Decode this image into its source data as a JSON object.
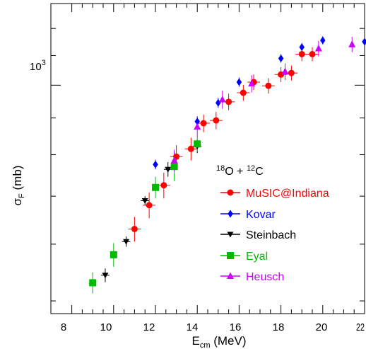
{
  "chart_data": {
    "type": "scatter",
    "title": "",
    "xlabel": {
      "main": "E",
      "sub": "cm",
      "unit": " (MeV)"
    },
    "ylabel": {
      "main": "σ",
      "sub": "F",
      "unit": " (mb)"
    },
    "xlim": [
      7.0,
      22.0
    ],
    "ylim_log": [
      480,
      1300
    ],
    "y_log_scale": true,
    "x_tick_labels": [
      "8",
      "10",
      "12",
      "14",
      "16",
      "18",
      "20",
      "22"
    ],
    "y_tick_labels": [
      "10",
      "3"
    ],
    "grid": false,
    "legend_title": {
      "a1": "18",
      "e1": "O + ",
      "a2": "12",
      "e2": "C"
    },
    "legend_placement": "center-right",
    "series": [
      {
        "name": "MuSIC@Indiana",
        "color": "#ff0000",
        "marker": "circle",
        "points": [
          {
            "x": 11.0,
            "y": 630,
            "xerr": 0.3,
            "yerr": 25
          },
          {
            "x": 11.7,
            "y": 680,
            "xerr": 0.3,
            "yerr": 28
          },
          {
            "x": 12.4,
            "y": 725,
            "xerr": 0.3,
            "yerr": 30
          },
          {
            "x": 13.0,
            "y": 795,
            "xerr": 0.3,
            "yerr": 30
          },
          {
            "x": 13.7,
            "y": 815,
            "xerr": 0.3,
            "yerr": 30
          },
          {
            "x": 14.3,
            "y": 885,
            "xerr": 0.3,
            "yerr": 25
          },
          {
            "x": 14.9,
            "y": 893,
            "xerr": 0.3,
            "yerr": 25
          },
          {
            "x": 15.5,
            "y": 948,
            "xerr": 0.3,
            "yerr": 25
          },
          {
            "x": 16.2,
            "y": 976,
            "xerr": 0.3,
            "yerr": 25
          },
          {
            "x": 16.7,
            "y": 1010,
            "xerr": 0.3,
            "yerr": 25
          },
          {
            "x": 17.4,
            "y": 998,
            "xerr": 0.3,
            "yerr": 25
          },
          {
            "x": 18.0,
            "y": 1035,
            "xerr": 0.3,
            "yerr": 25
          },
          {
            "x": 18.5,
            "y": 1040,
            "xerr": 0.3,
            "yerr": 25
          },
          {
            "x": 19.0,
            "y": 1105,
            "xerr": 0.3,
            "yerr": 25
          },
          {
            "x": 19.5,
            "y": 1105,
            "xerr": 0.3,
            "yerr": 25
          }
        ]
      },
      {
        "name": "Kovar",
        "color": "#0000ff",
        "marker": "diamond",
        "points": [
          {
            "x": 12.0,
            "y": 775,
            "xerr": 0,
            "yerr": 12
          },
          {
            "x": 14.0,
            "y": 890,
            "xerr": 0,
            "yerr": 15
          },
          {
            "x": 15.0,
            "y": 945,
            "xerr": 0,
            "yerr": 15
          },
          {
            "x": 16.0,
            "y": 1010,
            "xerr": 0,
            "yerr": 15
          },
          {
            "x": 18.0,
            "y": 1090,
            "xerr": 0,
            "yerr": 15
          },
          {
            "x": 19.0,
            "y": 1130,
            "xerr": 0,
            "yerr": 15
          },
          {
            "x": 20.0,
            "y": 1155,
            "xerr": 0,
            "yerr": 15
          },
          {
            "x": 22.0,
            "y": 1150,
            "xerr": 0,
            "yerr": 15
          }
        ]
      },
      {
        "name": "Steinbach",
        "color": "#000000",
        "marker": "triangle-down",
        "points": [
          {
            "x": 9.6,
            "y": 543,
            "xerr": 0.2,
            "yerr": 12
          },
          {
            "x": 10.6,
            "y": 605,
            "xerr": 0.2,
            "yerr": 10
          },
          {
            "x": 11.5,
            "y": 690,
            "xerr": 0.2,
            "yerr": 10
          },
          {
            "x": 12.6,
            "y": 763,
            "xerr": 0.2,
            "yerr": 18
          },
          {
            "x": 14.0,
            "y": 822,
            "xerr": 0.2,
            "yerr": 18
          }
        ]
      },
      {
        "name": "Eyal",
        "color": "#00bb00",
        "marker": "square",
        "points": [
          {
            "x": 9.0,
            "y": 530,
            "xerr": 0,
            "yerr": 18
          },
          {
            "x": 10.0,
            "y": 580,
            "xerr": 0,
            "yerr": 22
          },
          {
            "x": 12.0,
            "y": 720,
            "xerr": 0,
            "yerr": 25
          },
          {
            "x": 12.9,
            "y": 770,
            "xerr": 0,
            "yerr": 35
          },
          {
            "x": 14.0,
            "y": 828,
            "xerr": 0,
            "yerr": 20
          }
        ]
      },
      {
        "name": "Heusch",
        "color": "#cc00ff",
        "marker": "triangle-up",
        "points": [
          {
            "x": 12.9,
            "y": 785,
            "xerr": 0,
            "yerr": 28
          },
          {
            "x": 14.0,
            "y": 875,
            "xerr": 0,
            "yerr": 28
          },
          {
            "x": 15.2,
            "y": 955,
            "xerr": 0,
            "yerr": 28
          },
          {
            "x": 16.6,
            "y": 1005,
            "xerr": 0,
            "yerr": 28
          },
          {
            "x": 18.2,
            "y": 1045,
            "xerr": 0,
            "yerr": 28
          },
          {
            "x": 19.8,
            "y": 1125,
            "xerr": 0,
            "yerr": 28
          },
          {
            "x": 21.4,
            "y": 1140,
            "xerr": 0,
            "yerr": 28
          }
        ]
      }
    ]
  }
}
